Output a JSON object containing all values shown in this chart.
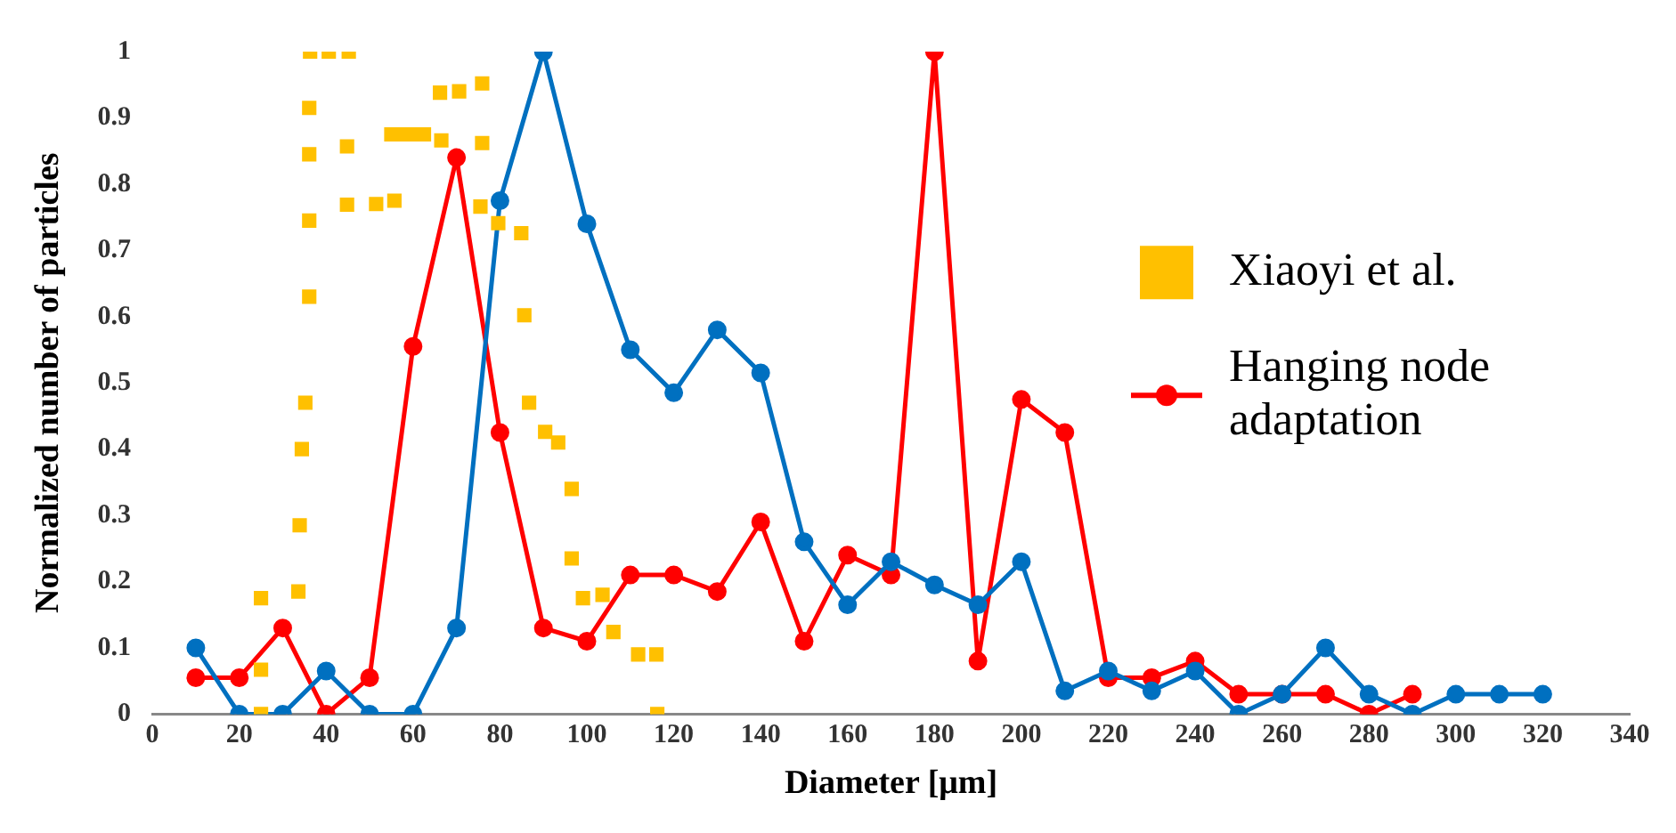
{
  "chart_data": {
    "type": "line",
    "xlabel": "Diameter [μm]",
    "ylabel": "Normalized number of particles",
    "xlim": [
      0,
      340
    ],
    "xticks": [
      0,
      20,
      40,
      60,
      80,
      100,
      120,
      140,
      160,
      180,
      200,
      220,
      240,
      260,
      280,
      300,
      320,
      340
    ],
    "ylim": [
      0,
      1
    ],
    "yticks": [
      0,
      0.1,
      0.2,
      0.3,
      0.4,
      0.5,
      0.6,
      0.7,
      0.8,
      0.9,
      1
    ],
    "grid": false,
    "legend": "right",
    "series": [
      {
        "name": "Xiaoyi et al.",
        "type": "scatter",
        "marker": "square",
        "color": "#ffc000",
        "x": [
          36.3,
          40.6,
          45.2,
          36.1,
          36.1,
          36.1,
          36.1,
          35.2,
          34.4,
          33.9,
          33.6,
          25,
          25,
          25,
          44.8,
          44.8,
          51.5,
          55.7,
          55,
          57.5,
          60,
          62.5,
          66.5,
          66.2,
          70.6,
          75.9,
          75.9,
          75.5,
          79.6,
          84.9,
          85.6,
          86.7,
          90.4,
          93.4,
          96.5,
          96.5,
          99.1,
          103.6,
          106.1,
          111.8,
          116,
          116.2
        ],
        "values": [
          1,
          1,
          1,
          0.915,
          0.845,
          0.745,
          0.63,
          0.47,
          0.4,
          0.285,
          0.185,
          0.175,
          0.067,
          0,
          0.857,
          0.769,
          0.77,
          0.775,
          0.875,
          0.875,
          0.875,
          0.875,
          0.866,
          0.938,
          0.94,
          0.952,
          0.862,
          0.766,
          0.741,
          0.726,
          0.602,
          0.47,
          0.426,
          0.41,
          0.34,
          0.235,
          0.175,
          0.18,
          0.124,
          0.09,
          0.09,
          0
        ]
      },
      {
        "type": "line",
        "marker": "circle",
        "line_style": "solid",
        "color": "#0070c0",
        "x": [
          10,
          20,
          30,
          40,
          50,
          60,
          70,
          80,
          90,
          100,
          110,
          120,
          130,
          140,
          150,
          160,
          170,
          180,
          190,
          200,
          210,
          220,
          230,
          240,
          250,
          260,
          270,
          280,
          290,
          300,
          310,
          320
        ],
        "values": [
          0.1,
          0,
          0,
          0.065,
          0,
          0,
          0.13,
          0.775,
          1,
          0.74,
          0.55,
          0.485,
          0.58,
          0.515,
          0.26,
          0.165,
          0.23,
          0.195,
          0.165,
          0.23,
          0.035,
          0.065,
          0.035,
          0.065,
          0,
          0.03,
          0.1,
          0.03,
          0,
          0.03,
          0.03,
          0.03
        ]
      },
      {
        "name": "Hanging node adaptation",
        "type": "line",
        "marker": "circle",
        "line_style": "solid",
        "color": "#ff0000",
        "x": [
          10,
          20,
          30,
          40,
          50,
          60,
          70,
          80,
          90,
          100,
          110,
          120,
          130,
          140,
          150,
          160,
          170,
          180,
          190,
          200,
          210,
          220,
          230,
          240,
          250,
          260,
          270,
          280,
          290
        ],
        "values": [
          0.055,
          0.055,
          0.13,
          0,
          0.055,
          0.555,
          0.84,
          0.425,
          0.13,
          0.11,
          0.21,
          0.21,
          0.185,
          0.29,
          0.11,
          0.24,
          0.21,
          1,
          0.08,
          0.475,
          0.425,
          0.055,
          0.055,
          0.08,
          0.03,
          0.03,
          0.03,
          0,
          0.03
        ]
      }
    ]
  }
}
